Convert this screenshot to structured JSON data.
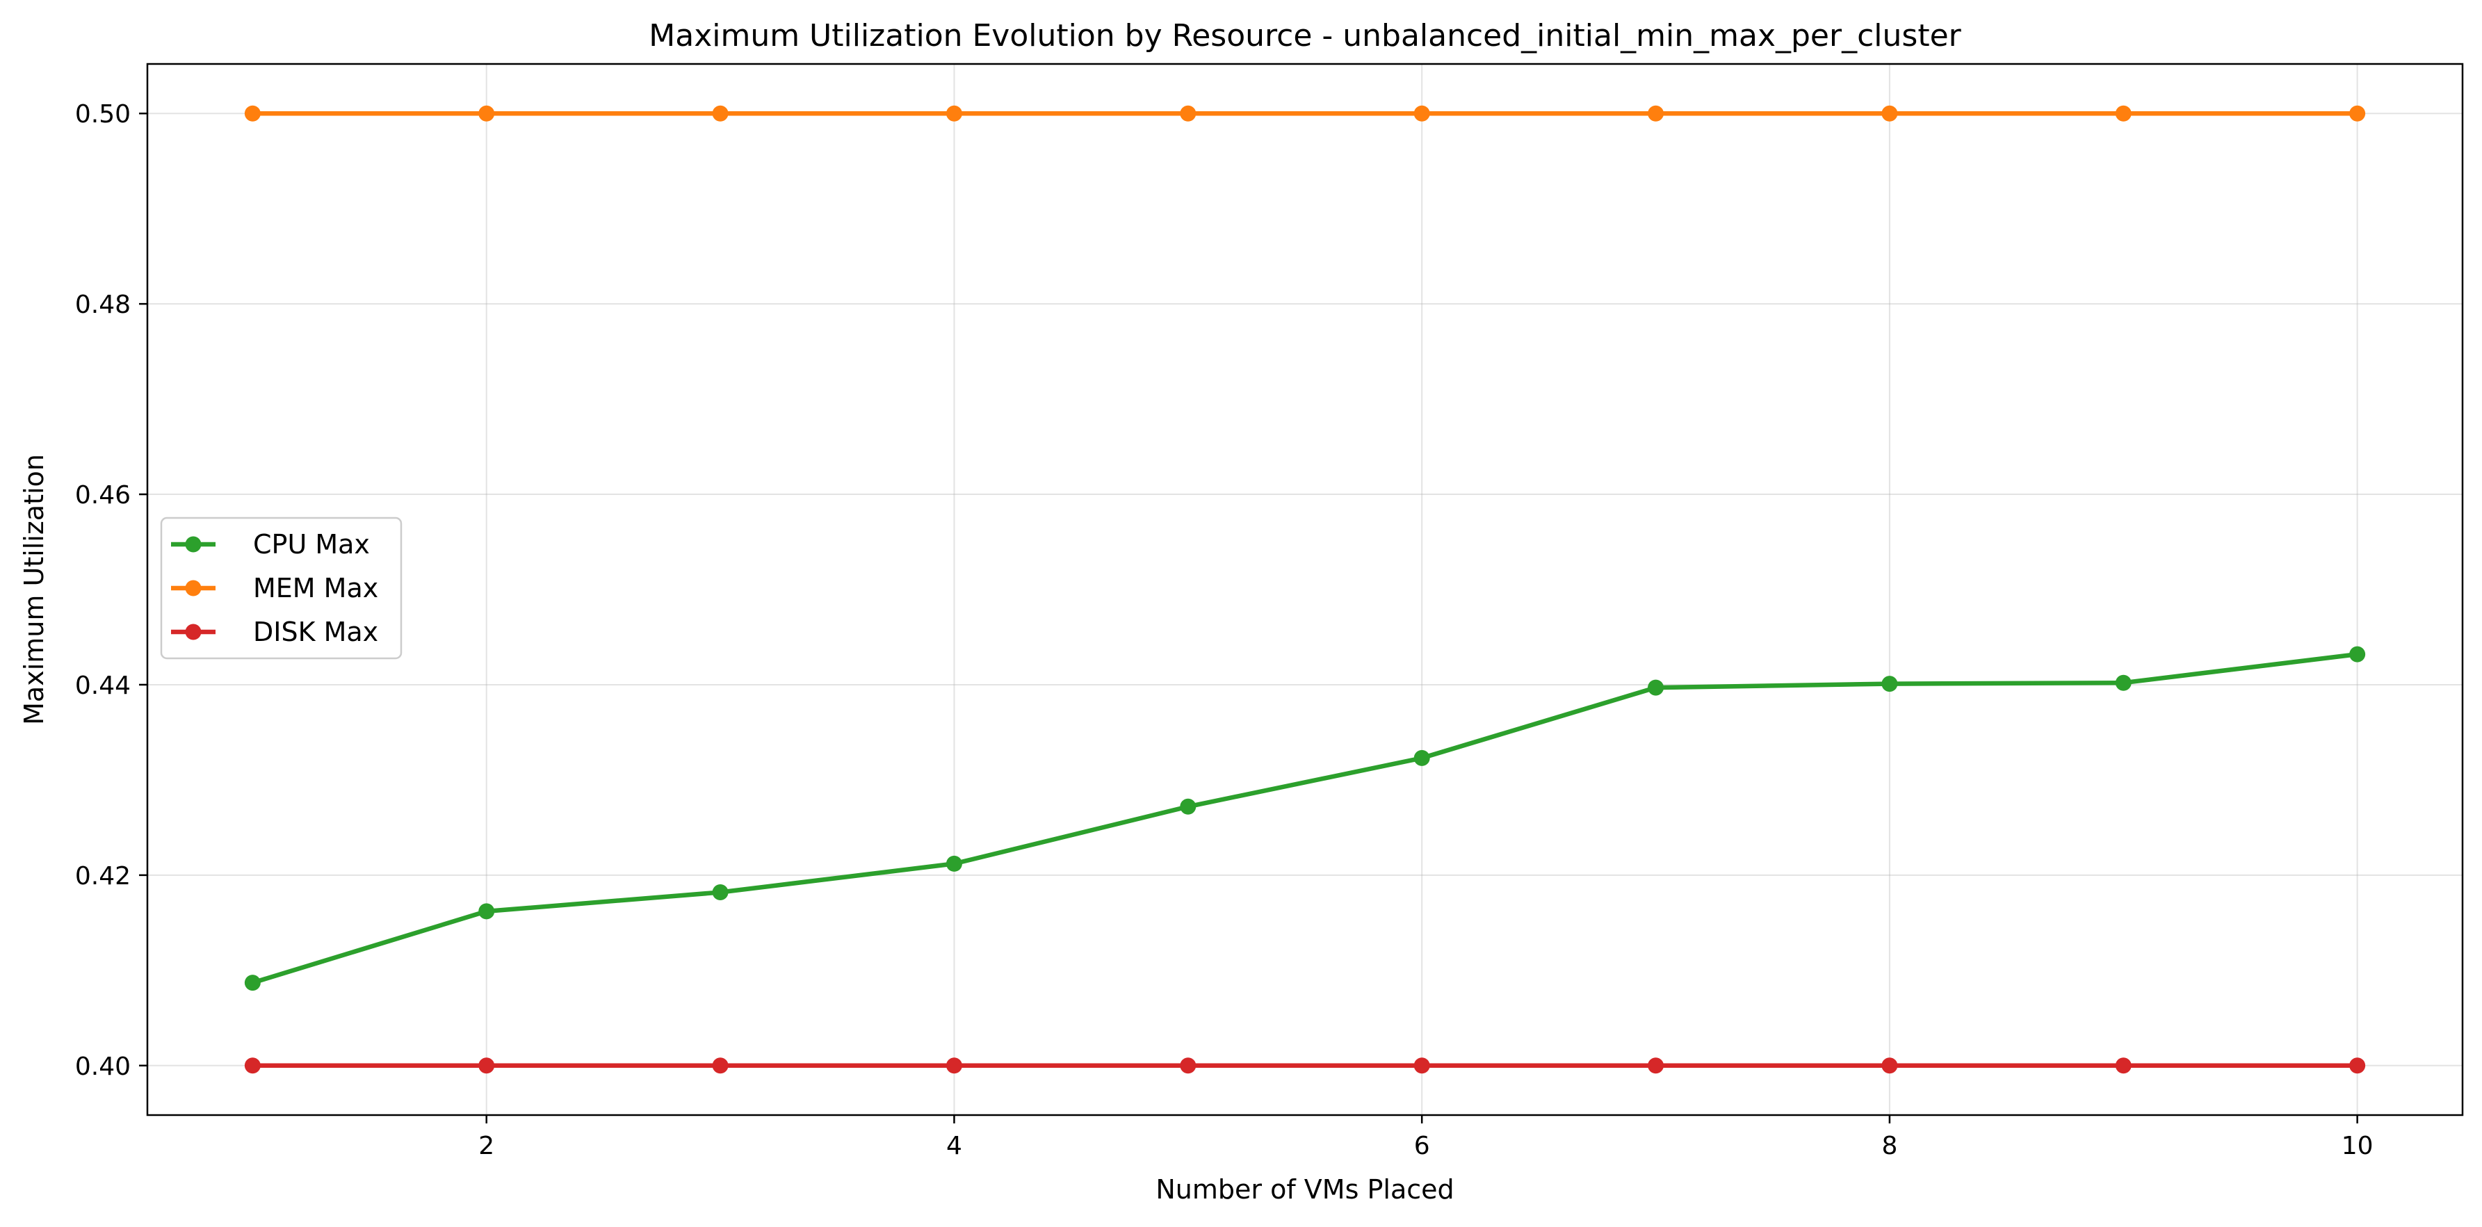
{
  "chart_data": {
    "type": "line",
    "title": "Maximum Utilization Evolution by Resource - unbalanced_initial_min_max_per_cluster",
    "xlabel": "Number of VMs Placed",
    "ylabel": "Maximum Utilization",
    "xlim": [
      0.55,
      10.45
    ],
    "ylim": [
      0.3948,
      0.5052
    ],
    "x_ticks": [
      2,
      4,
      6,
      8,
      10
    ],
    "y_ticks": [
      0.4,
      0.42,
      0.44,
      0.46,
      0.48,
      0.5
    ],
    "x_tick_labels": [
      "2",
      "4",
      "6",
      "8",
      "10"
    ],
    "y_tick_labels": [
      "0.40",
      "0.42",
      "0.44",
      "0.46",
      "0.48",
      "0.50"
    ],
    "grid": true,
    "legend_position": "center-left",
    "x": [
      1,
      2,
      3,
      4,
      5,
      6,
      7,
      8,
      9,
      10
    ],
    "series": [
      {
        "name": "CPU Max",
        "color": "#2ca02c",
        "values": [
          0.4087,
          0.4162,
          0.4182,
          0.4212,
          0.4272,
          0.4323,
          0.4397,
          0.4401,
          0.4402,
          0.4432
        ]
      },
      {
        "name": "MEM Max",
        "color": "#ff7f0e",
        "values": [
          0.5,
          0.5,
          0.5,
          0.5,
          0.5,
          0.5,
          0.5,
          0.5,
          0.5,
          0.5
        ]
      },
      {
        "name": "DISK Max",
        "color": "#d62728",
        "values": [
          0.4,
          0.4,
          0.4,
          0.4,
          0.4,
          0.4,
          0.4,
          0.4,
          0.4,
          0.4
        ]
      }
    ]
  }
}
